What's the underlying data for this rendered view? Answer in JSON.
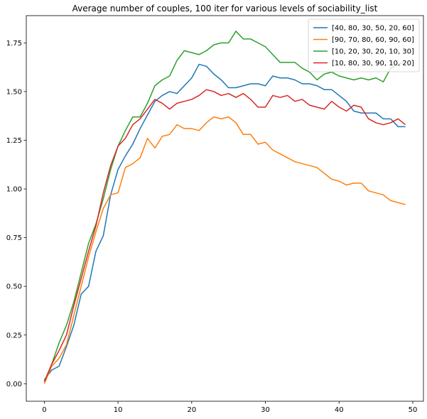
{
  "chart_data": {
    "type": "line",
    "title": "Average number of couples, 100 iter for various levels of sociability_list",
    "xlabel": "",
    "ylabel": "",
    "xlim": [
      -2.45,
      51.45
    ],
    "ylim": [
      -0.09,
      1.89
    ],
    "xticks": [
      0,
      10,
      20,
      30,
      40,
      50
    ],
    "yticks": [
      0.0,
      0.25,
      0.5,
      0.75,
      1.0,
      1.25,
      1.5,
      1.75
    ],
    "ytick_labels": [
      "0.00",
      "0.25",
      "0.50",
      "0.75",
      "1.00",
      "1.25",
      "1.50",
      "1.75"
    ],
    "grid": false,
    "legend_position": "top-right",
    "x": [
      0,
      1,
      2,
      3,
      4,
      5,
      6,
      7,
      8,
      9,
      10,
      11,
      12,
      13,
      14,
      15,
      16,
      17,
      18,
      19,
      20,
      21,
      22,
      23,
      24,
      25,
      26,
      27,
      28,
      29,
      30,
      31,
      32,
      33,
      34,
      35,
      36,
      37,
      38,
      39,
      40,
      41,
      42,
      43,
      44,
      45,
      46,
      47,
      48,
      49
    ],
    "series": [
      {
        "name": "[40, 80, 30, 50, 20, 60]",
        "color": "#1f77b4",
        "values": [
          0.02,
          0.07,
          0.09,
          0.19,
          0.3,
          0.46,
          0.5,
          0.68,
          0.76,
          0.97,
          1.1,
          1.17,
          1.23,
          1.31,
          1.38,
          1.45,
          1.48,
          1.5,
          1.49,
          1.53,
          1.57,
          1.64,
          1.63,
          1.59,
          1.56,
          1.52,
          1.52,
          1.53,
          1.54,
          1.54,
          1.53,
          1.58,
          1.57,
          1.57,
          1.56,
          1.54,
          1.54,
          1.53,
          1.51,
          1.51,
          1.48,
          1.45,
          1.4,
          1.39,
          1.39,
          1.39,
          1.36,
          1.36,
          1.32,
          1.32
        ]
      },
      {
        "name": "[90, 70, 80, 60, 90, 60]",
        "color": "#ff7f0e",
        "values": [
          0.0,
          0.09,
          0.13,
          0.2,
          0.35,
          0.5,
          0.65,
          0.78,
          0.9,
          0.97,
          0.98,
          1.11,
          1.13,
          1.16,
          1.26,
          1.21,
          1.27,
          1.28,
          1.33,
          1.31,
          1.31,
          1.3,
          1.34,
          1.37,
          1.36,
          1.37,
          1.34,
          1.28,
          1.28,
          1.23,
          1.24,
          1.2,
          1.18,
          1.16,
          1.14,
          1.13,
          1.12,
          1.11,
          1.08,
          1.05,
          1.04,
          1.02,
          1.03,
          1.03,
          0.99,
          0.98,
          0.97,
          0.94,
          0.93,
          0.92
        ]
      },
      {
        "name": "[10, 20, 30, 20, 10, 30]",
        "color": "#2ca02c",
        "values": [
          0.01,
          0.1,
          0.21,
          0.3,
          0.42,
          0.57,
          0.72,
          0.82,
          0.95,
          1.1,
          1.22,
          1.3,
          1.37,
          1.37,
          1.44,
          1.53,
          1.56,
          1.58,
          1.66,
          1.71,
          1.7,
          1.69,
          1.71,
          1.74,
          1.75,
          1.75,
          1.81,
          1.77,
          1.77,
          1.75,
          1.73,
          1.69,
          1.65,
          1.65,
          1.65,
          1.62,
          1.6,
          1.56,
          1.59,
          1.6,
          1.58,
          1.57,
          1.56,
          1.57,
          1.56,
          1.57,
          1.55,
          1.62,
          1.64,
          1.65
        ]
      },
      {
        "name": "[10, 80, 30, 90, 10, 20]",
        "color": "#d62728",
        "values": [
          0.01,
          0.1,
          0.17,
          0.25,
          0.4,
          0.54,
          0.68,
          0.81,
          0.98,
          1.12,
          1.22,
          1.26,
          1.33,
          1.36,
          1.41,
          1.46,
          1.44,
          1.41,
          1.44,
          1.45,
          1.46,
          1.48,
          1.51,
          1.5,
          1.48,
          1.49,
          1.47,
          1.49,
          1.46,
          1.42,
          1.42,
          1.48,
          1.47,
          1.48,
          1.45,
          1.46,
          1.43,
          1.42,
          1.41,
          1.45,
          1.42,
          1.4,
          1.43,
          1.42,
          1.36,
          1.34,
          1.33,
          1.34,
          1.36,
          1.33
        ]
      }
    ]
  }
}
